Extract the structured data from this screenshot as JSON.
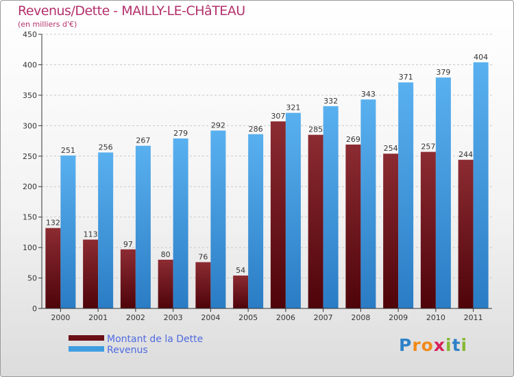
{
  "header": {
    "title": "Revenus/Dette - MAILLY-LE-CHâTEAU",
    "subtitle": "(en milliers d'€)"
  },
  "chart_data": {
    "type": "bar",
    "title": "Revenus/Dette - MAILLY-LE-CHâTEAU",
    "subtitle": "(en milliers d'€)",
    "categories": [
      "2000",
      "2001",
      "2002",
      "2003",
      "2004",
      "2005",
      "2006",
      "2007",
      "2008",
      "2009",
      "2010",
      "2011"
    ],
    "series": [
      {
        "name": "Montant de la Dette",
        "color": "#7a1a22",
        "values": [
          132,
          113,
          97,
          80,
          76,
          54,
          307,
          285,
          269,
          254,
          257,
          244
        ]
      },
      {
        "name": "Revenus",
        "color": "#3f9de0",
        "values": [
          251,
          256,
          267,
          279,
          292,
          286,
          321,
          332,
          343,
          371,
          379,
          404
        ]
      }
    ],
    "ylim": [
      0,
      450
    ],
    "yticks": [
      0,
      50,
      100,
      150,
      200,
      250,
      300,
      350,
      400,
      450
    ],
    "grid": true,
    "legend_position": "bottom-left"
  },
  "legend": {
    "items": [
      {
        "label": "Montant de la Dette",
        "color": "#6a0f16"
      },
      {
        "label": "Revenus",
        "color": "#3f9de0"
      }
    ]
  },
  "logo": {
    "letters": [
      {
        "ch": "P",
        "color": "#2e82c8"
      },
      {
        "ch": "r",
        "color": "#f08a1c"
      },
      {
        "ch": "o",
        "color": "#f08a1c"
      },
      {
        "ch": "x",
        "color": "#d6215a"
      },
      {
        "ch": "i",
        "color": "#86b832"
      },
      {
        "ch": "t",
        "color": "#2e82c8"
      },
      {
        "ch": "i",
        "color": "#86b832"
      }
    ]
  }
}
